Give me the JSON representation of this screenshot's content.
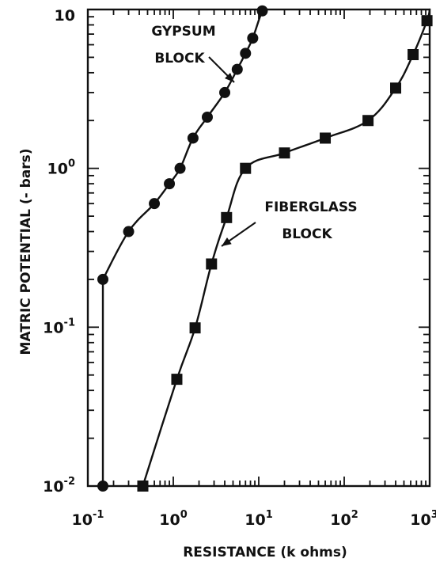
{
  "chart_data": {
    "type": "line",
    "title": "",
    "xlabel": "RESISTANCE (k ohms)",
    "ylabel": "MATRIC POTENTIAL (- bars)",
    "xscale": "log",
    "yscale": "log",
    "xlim": [
      0.1,
      1000
    ],
    "ylim": [
      0.01,
      10
    ],
    "grid": false,
    "x_ticks": [
      {
        "base": "10",
        "exp": "-1"
      },
      {
        "base": "10",
        "exp": "0"
      },
      {
        "base": "10",
        "exp": "1"
      },
      {
        "base": "10",
        "exp": "2"
      },
      {
        "base": "10",
        "exp": "3"
      }
    ],
    "y_ticks": [
      {
        "base": "10",
        "exp": "-2"
      },
      {
        "base": "10",
        "exp": "-1"
      },
      {
        "base": "10",
        "exp": "0"
      },
      {
        "base": "10",
        "exp": ""
      }
    ],
    "series": [
      {
        "name": "GYPSUM BLOCK",
        "marker": "circle",
        "label_lines": [
          "GYPSUM",
          "BLOCK"
        ],
        "points": [
          {
            "x": 0.15,
            "y": 0.01
          },
          {
            "x": 0.15,
            "y": 0.2
          },
          {
            "x": 0.3,
            "y": 0.4
          },
          {
            "x": 0.6,
            "y": 0.6
          },
          {
            "x": 0.9,
            "y": 0.8
          },
          {
            "x": 1.2,
            "y": 1.0
          },
          {
            "x": 1.7,
            "y": 1.55
          },
          {
            "x": 2.5,
            "y": 2.1
          },
          {
            "x": 4.0,
            "y": 3.0
          },
          {
            "x": 5.6,
            "y": 4.2
          },
          {
            "x": 7.0,
            "y": 5.3
          },
          {
            "x": 8.5,
            "y": 6.6
          },
          {
            "x": 11.0,
            "y": 9.8
          }
        ],
        "curve_end": {
          "x": 12.5,
          "y": 10.0
        }
      },
      {
        "name": "FIBERGLASS BLOCK",
        "marker": "square",
        "label_lines": [
          "FIBERGLASS",
          "BLOCK"
        ],
        "points": [
          {
            "x": 0.44,
            "y": 0.01
          },
          {
            "x": 1.1,
            "y": 0.047
          },
          {
            "x": 1.8,
            "y": 0.099
          },
          {
            "x": 2.8,
            "y": 0.25
          },
          {
            "x": 4.2,
            "y": 0.49
          },
          {
            "x": 7.0,
            "y": 1.0
          },
          {
            "x": 20.0,
            "y": 1.25
          },
          {
            "x": 60.0,
            "y": 1.55
          },
          {
            "x": 190.0,
            "y": 2.0
          },
          {
            "x": 400.0,
            "y": 3.2
          },
          {
            "x": 640.0,
            "y": 5.2
          },
          {
            "x": 930.0,
            "y": 8.5
          }
        ],
        "curve_end": {
          "x": 1000.0,
          "y": 10.0
        }
      }
    ]
  }
}
